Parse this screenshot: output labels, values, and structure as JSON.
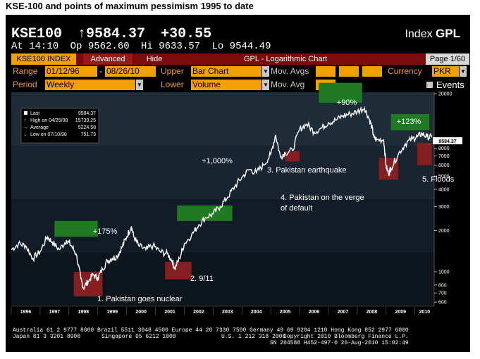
{
  "page_title": "KSE-100 and points of maximum  pessimism  1995 to date",
  "header": {
    "ticker": "KSE100",
    "last": "↑9584.37",
    "change": "+30.55",
    "index_label": "Index",
    "source": "GPL",
    "time": "At 14:10",
    "open": "Op 9562.60",
    "high": "Hi 9633.57",
    "low": "Lo 9544.49"
  },
  "tabs": {
    "index": "KSE100 INDEX",
    "advanced": "Advanced",
    "hide": "Hide",
    "title": "GPL - Logarithmic Chart",
    "page": "Page 1/60"
  },
  "controls": {
    "range_label": "Range",
    "range_start": "01/12/96",
    "range_sep": "-",
    "range_end": "08/26/10",
    "upper_label": "Upper",
    "upper_value": "Bar Chart",
    "mov_avgs_label": "Mov. Avgs",
    "currency_label": "Currency",
    "currency_value": "PKR",
    "period_label": "Period",
    "period_value": "Weekly",
    "lower_label": "Lower",
    "lower_value": "Volume",
    "mov_avg_label": "Mov. Avg",
    "events_label": "Events"
  },
  "legend": {
    "last_label": "Last",
    "last_value": "9584.37",
    "high_label": "High on 04/25/08",
    "high_value": "15739.25",
    "avg_label": "Average",
    "avg_value": "5224.58",
    "low_label": "Low on 07/10/98",
    "low_value": "751.73"
  },
  "colors": {
    "background": "#000000",
    "plot_bands": [
      "#0c141c",
      "#121c26",
      "#182430",
      "#1e2c38"
    ],
    "price_line": "#ffffff",
    "gain_box": "#1f7a23",
    "pessimism_box": "#8a1f22",
    "accent_orange": "#f2a000",
    "tab_red": "#7a0c0c"
  },
  "chart_data": {
    "type": "line",
    "title": "KSE-100 and points of maximum  pessimism  1995 to date",
    "y_scale": "log",
    "ylim": [
      560,
      20500
    ],
    "x_range": [
      "1996-01",
      "2010-08"
    ],
    "y_ticks": [
      "20000",
      "8000",
      "7000",
      "6000",
      "5000",
      "4000",
      "3000",
      "2000",
      "1000",
      "800",
      "700",
      "600"
    ],
    "x_tick_labels": [
      "1996",
      "1997",
      "1998",
      "1999",
      "2000",
      "2001",
      "2002",
      "2003",
      "2004",
      "2005",
      "2006",
      "2007",
      "2008",
      "2009",
      "2010"
    ],
    "last_price_label": "9584.37",
    "series": [
      {
        "points": [
          [
            "1996-01",
            1450
          ],
          [
            "1996-04",
            1600
          ],
          [
            "1996-07",
            1550
          ],
          [
            "1996-10",
            1250
          ],
          [
            "1997-01",
            1400
          ],
          [
            "1997-04",
            1800
          ],
          [
            "1997-06",
            1650
          ],
          [
            "1997-09",
            1450
          ],
          [
            "1997-12",
            1700
          ],
          [
            "1998-02",
            1550
          ],
          [
            "1998-04",
            1350
          ],
          [
            "1998-06",
            880
          ],
          [
            "1998-07",
            760
          ],
          [
            "1998-09",
            850
          ],
          [
            "1998-11",
            950
          ],
          [
            "1999-01",
            900
          ],
          [
            "1999-03",
            1050
          ],
          [
            "1999-05",
            1200
          ],
          [
            "1999-07",
            1250
          ],
          [
            "1999-09",
            1300
          ],
          [
            "1999-11",
            1500
          ],
          [
            "2000-01",
            1800
          ],
          [
            "2000-03",
            2150
          ],
          [
            "2000-04",
            1800
          ],
          [
            "2000-06",
            1550
          ],
          [
            "2000-09",
            1450
          ],
          [
            "2000-12",
            1550
          ],
          [
            "2001-03",
            1400
          ],
          [
            "2001-06",
            1350
          ],
          [
            "2001-08",
            1200
          ],
          [
            "2001-09",
            1050
          ],
          [
            "2001-11",
            1250
          ],
          [
            "2002-01",
            1600
          ],
          [
            "2002-04",
            1850
          ],
          [
            "2002-07",
            2200
          ],
          [
            "2002-10",
            2500
          ],
          [
            "2003-01",
            2650
          ],
          [
            "2003-04",
            3000
          ],
          [
            "2003-07",
            3500
          ],
          [
            "2003-10",
            4200
          ],
          [
            "2004-01",
            4900
          ],
          [
            "2004-04",
            5600
          ],
          [
            "2004-07",
            5300
          ],
          [
            "2004-10",
            6000
          ],
          [
            "2005-01",
            7200
          ],
          [
            "2005-03",
            10000
          ],
          [
            "2005-05",
            6900
          ],
          [
            "2005-07",
            7400
          ],
          [
            "2005-10",
            7700
          ],
          [
            "2006-01",
            11000
          ],
          [
            "2006-04",
            12000
          ],
          [
            "2006-07",
            10500
          ],
          [
            "2006-10",
            11200
          ],
          [
            "2007-01",
            12300
          ],
          [
            "2007-04",
            12800
          ],
          [
            "2007-07",
            13800
          ],
          [
            "2007-10",
            14200
          ],
          [
            "2008-01",
            14800
          ],
          [
            "2008-04",
            15739
          ],
          [
            "2008-06",
            13000
          ],
          [
            "2008-07",
            11500
          ],
          [
            "2008-08",
            9500
          ],
          [
            "2008-09",
            9200
          ],
          [
            "2008-12",
            9200
          ],
          [
            "2009-01",
            5900
          ],
          [
            "2009-02",
            5200
          ],
          [
            "2009-03",
            5700
          ],
          [
            "2009-06",
            7200
          ],
          [
            "2009-09",
            8600
          ],
          [
            "2009-12",
            9400
          ],
          [
            "2010-02",
            9700
          ],
          [
            "2010-04",
            10200
          ],
          [
            "2010-06",
            9700
          ],
          [
            "2010-08",
            9584
          ]
        ]
      }
    ],
    "annotations": {
      "gains": [
        {
          "label": "+175%",
          "from": "1998-06",
          "to": "2000-03"
        },
        {
          "label": "+1,000%",
          "from": "2001-09",
          "to": "2005-03"
        },
        {
          "label": "+90%",
          "from": "2005-06",
          "to": "2008-04"
        },
        {
          "label": "+123%",
          "from": "2009-02",
          "to": "2010-08"
        }
      ],
      "pessimism": [
        {
          "label": "1. Pakistan goes nuclear",
          "date": "1998-06"
        },
        {
          "label": "2. 9/11",
          "date": "2001-09"
        },
        {
          "label": "3. Pakistan earthquake",
          "date": "2005-10"
        },
        {
          "label": "4.  Pakistan on the verge",
          "label2": "of default",
          "date": "2009-01"
        },
        {
          "label": "5. Floods",
          "date": "2010-08"
        }
      ]
    }
  },
  "footer": {
    "line1": "Australia 61 2 9777 8600 Brazil 5511 3048 4500 Europe 44 20 7330 7500 Germany 49 69 9204 1210 Hong Kong 852 2977 6000",
    "line2_left": "Japan 81 3 3201 8900",
    "line2_mid": "Singapore 65 6212 1000",
    "line2_us": "U.S. 1 212 318 2000",
    "line2_right": "Copyright 2010 Bloomberg Finance L.P.",
    "line3_right": "SN 204588 H452-497-0 26-Aug-2010 15:02:49"
  }
}
